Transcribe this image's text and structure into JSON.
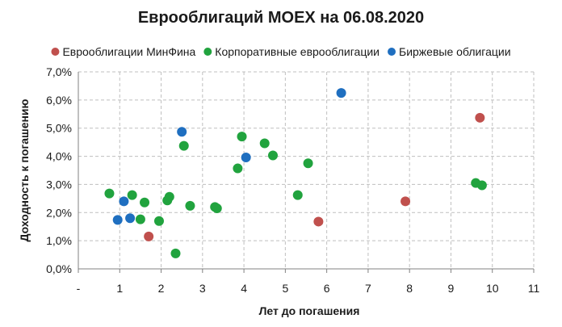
{
  "chart_data": {
    "type": "scatter",
    "title": "Еврооблигаций MOEX на 06.08.2020",
    "xlabel": "Лет до погашения",
    "ylabel": "Доходность к погашению",
    "xlim": [
      0,
      11
    ],
    "ylim": [
      0,
      0.07
    ],
    "x_ticks": [
      "-",
      "1",
      "2",
      "3",
      "4",
      "5",
      "6",
      "7",
      "8",
      "9",
      "10",
      "11"
    ],
    "y_ticks": [
      "0,0%",
      "1,0%",
      "2,0%",
      "3,0%",
      "4,0%",
      "5,0%",
      "6,0%",
      "7,0%"
    ],
    "grid": true,
    "legend_position": "top",
    "series": [
      {
        "name": "Еврооблигации МинФина",
        "color": "#c0504d",
        "points": [
          {
            "x": 1.7,
            "y": 0.0115
          },
          {
            "x": 5.8,
            "y": 0.0168
          },
          {
            "x": 7.9,
            "y": 0.024
          },
          {
            "x": 9.7,
            "y": 0.0537
          }
        ]
      },
      {
        "name": "Корпоративные еврооблигации",
        "color": "#21a33e",
        "points": [
          {
            "x": 0.75,
            "y": 0.0268
          },
          {
            "x": 1.3,
            "y": 0.0262
          },
          {
            "x": 1.5,
            "y": 0.0176
          },
          {
            "x": 1.6,
            "y": 0.0236
          },
          {
            "x": 1.95,
            "y": 0.017
          },
          {
            "x": 2.15,
            "y": 0.0243
          },
          {
            "x": 2.2,
            "y": 0.0256
          },
          {
            "x": 2.35,
            "y": 0.0055
          },
          {
            "x": 2.55,
            "y": 0.0437
          },
          {
            "x": 2.7,
            "y": 0.0224
          },
          {
            "x": 3.3,
            "y": 0.022
          },
          {
            "x": 3.35,
            "y": 0.0215
          },
          {
            "x": 3.85,
            "y": 0.0357
          },
          {
            "x": 3.95,
            "y": 0.047
          },
          {
            "x": 4.5,
            "y": 0.0446
          },
          {
            "x": 4.7,
            "y": 0.0403
          },
          {
            "x": 5.3,
            "y": 0.0262
          },
          {
            "x": 5.55,
            "y": 0.0375
          },
          {
            "x": 9.6,
            "y": 0.0305
          },
          {
            "x": 9.75,
            "y": 0.0297
          }
        ]
      },
      {
        "name": "Биржевые облигации",
        "color": "#1f6fc0",
        "points": [
          {
            "x": 0.95,
            "y": 0.0174
          },
          {
            "x": 1.1,
            "y": 0.024
          },
          {
            "x": 1.25,
            "y": 0.018
          },
          {
            "x": 2.5,
            "y": 0.0487
          },
          {
            "x": 4.05,
            "y": 0.0396
          },
          {
            "x": 6.35,
            "y": 0.0625
          }
        ]
      }
    ]
  }
}
